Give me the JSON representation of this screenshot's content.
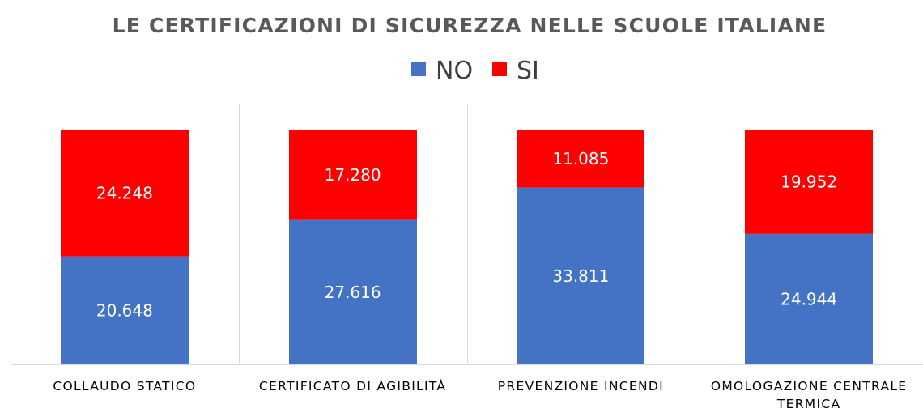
{
  "chart_data": {
    "type": "bar",
    "stacked": true,
    "normalized": true,
    "title": "LE CERTIFICAZIONI DI SICUREZZA NELLE SCUOLE ITALIANE",
    "xlabel": "",
    "ylabel": "",
    "legend": {
      "position": "top",
      "entries": [
        "NO",
        "SI"
      ]
    },
    "categories": [
      [
        "COLLAUDO STATICO"
      ],
      [
        "CERTIFICATO DI AGIBILITÀ"
      ],
      [
        "PREVENZIONE INCENDI"
      ],
      [
        "OMOLOGAZIONE CENTRALE",
        "TERMICA"
      ]
    ],
    "series": [
      {
        "name": "NO",
        "color": "#4472C4",
        "values": [
          20648,
          27616,
          33811,
          24944
        ],
        "labels": [
          "20.648",
          "27.616",
          "33.811",
          "24.944"
        ]
      },
      {
        "name": "SI",
        "color": "#FF0000",
        "values": [
          24248,
          17280,
          11085,
          19952
        ],
        "labels": [
          "24.248",
          "17.280",
          "11.085",
          "19.952"
        ]
      }
    ],
    "grid": false,
    "category_separators": true,
    "separator_color": "#D9D9D9"
  }
}
